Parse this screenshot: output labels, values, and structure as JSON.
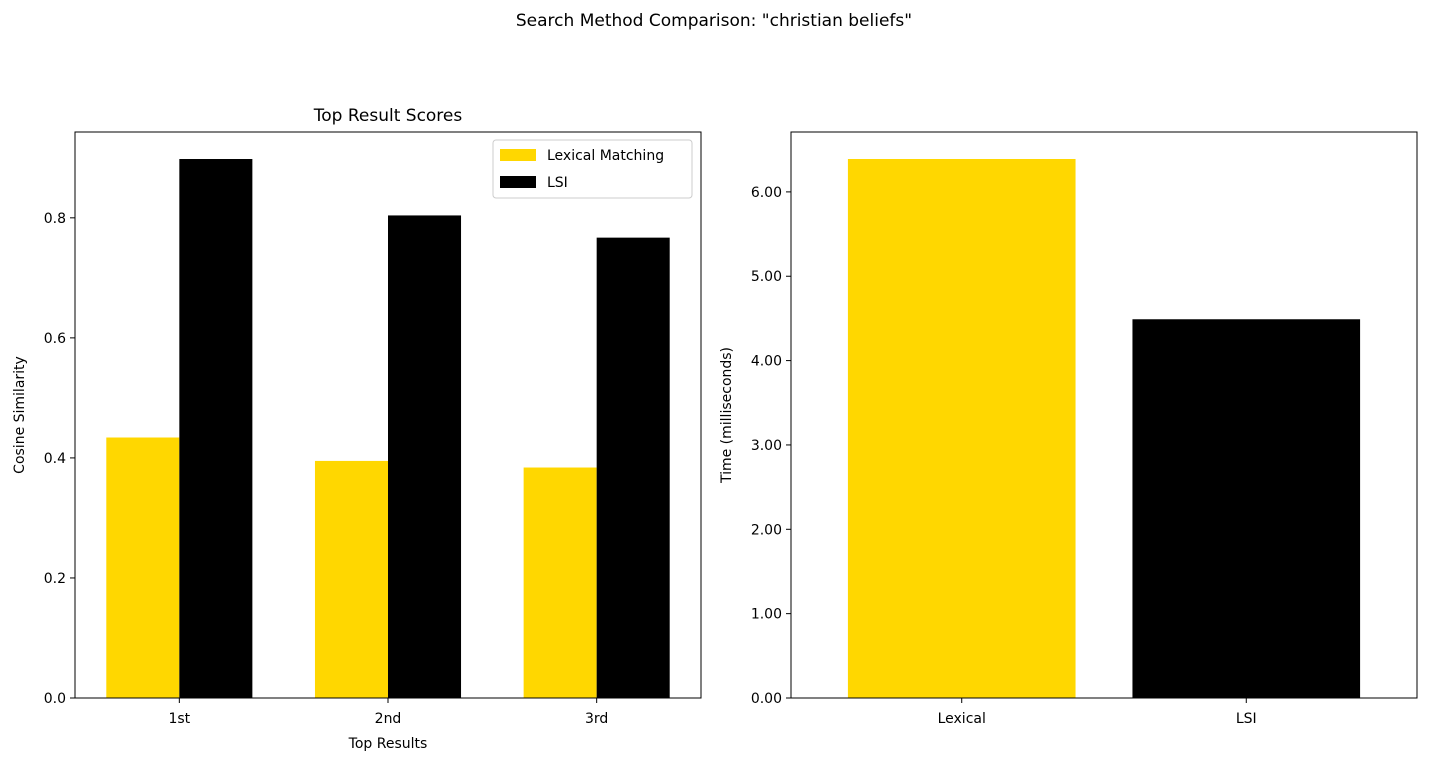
{
  "figure": {
    "title": "Search Method Comparison: \"christian beliefs\""
  },
  "chart_data": [
    {
      "type": "bar",
      "title": "Top Result Scores",
      "xlabel": "Top Results",
      "ylabel": "Cosine Similarity",
      "categories": [
        "1st",
        "2nd",
        "3rd"
      ],
      "series": [
        {
          "name": "Lexical Matching",
          "color": "#FFD700",
          "values": [
            0.434,
            0.395,
            0.384
          ]
        },
        {
          "name": "LSI",
          "color": "#000000",
          "values": [
            0.898,
            0.804,
            0.767
          ]
        }
      ],
      "ylim": [
        0,
        0.943
      ],
      "yticks": [
        0.0,
        0.2,
        0.4,
        0.6,
        0.8
      ],
      "ytick_decimals": 1,
      "legend": "upper right"
    },
    {
      "type": "bar",
      "title": "",
      "xlabel": "",
      "ylabel": "Time (milliseconds)",
      "categories": [
        "Lexical",
        "LSI"
      ],
      "series": [
        {
          "name": "Time",
          "colors": [
            "#FFD700",
            "#000000"
          ],
          "values": [
            6.39,
            4.49
          ]
        }
      ],
      "ylim": [
        0,
        6.71
      ],
      "yticks": [
        0,
        1,
        2,
        3,
        4,
        5,
        6
      ],
      "ytick_decimals": 2
    }
  ]
}
